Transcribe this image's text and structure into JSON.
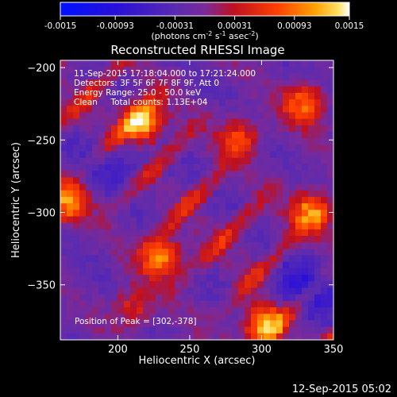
{
  "colorbar": {
    "tick_labels": [
      "-0.0015",
      "-0.00093",
      "-0.00031",
      "0.00031",
      "0.00093",
      "0.0015"
    ],
    "tick_values": [
      -0.0015,
      -0.00093,
      -0.00031,
      0.00031,
      0.00093,
      0.0015
    ],
    "range": [
      -0.0015,
      0.0015
    ],
    "unit_label_parts": [
      "(photons cm",
      "-2",
      " s",
      "-1",
      " asec",
      "-2",
      ")"
    ]
  },
  "chart_data": {
    "type": "heatmap",
    "title": "Reconstructed RHESSI Image",
    "xlabel": "Heliocentric X (arcsec)",
    "ylabel": "Heliocentric Y (arcsec)",
    "xlim": [
      160,
      350
    ],
    "ylim": [
      -388,
      -195
    ],
    "x_ticks": [
      200,
      250,
      300,
      350
    ],
    "y_ticks": [
      -200,
      -250,
      -300,
      -350
    ],
    "x_tick_labels": [
      "200",
      "250",
      "300",
      "350"
    ],
    "y_tick_labels": [
      "−200",
      "−250",
      "−300",
      "−350"
    ],
    "colorscale": "RHESSI blue-purple-red-yellow-white",
    "colors": [
      "#0010ff",
      "#3a10d0",
      "#5a2bb0",
      "#7a2ab0",
      "#b01818",
      "#ff3000",
      "#ff7a00",
      "#ffb000",
      "#ffe060",
      "#ffffff"
    ],
    "annotations": [
      "11-Sep-2015 17:18:04.000 to 17:21:24.000",
      "Detectors: 3F 5F 6F 7F 8F 9F, Att 0",
      "Energy Range: 25.0 - 50.0 keV",
      "Clean     Total counts: 1.13E+04"
    ],
    "peak_label": "Position of Peak = [302,-378]",
    "peak_position": [
      302,
      -378
    ],
    "sources": [
      {
        "x": 217,
        "y": -238,
        "intensity": 1.0
      },
      {
        "x": 230,
        "y": -330,
        "intensity": 0.8
      },
      {
        "x": 302,
        "y": -378,
        "intensity": 1.0
      },
      {
        "x": 335,
        "y": -300,
        "intensity": 0.85
      },
      {
        "x": 165,
        "y": -292,
        "intensity": 0.8
      },
      {
        "x": 330,
        "y": -225,
        "intensity": 0.7
      },
      {
        "x": 285,
        "y": -248,
        "intensity": 0.55
      },
      {
        "x": 210,
        "y": -365,
        "intensity": 0.45
      }
    ]
  },
  "footer": {
    "timestamp": "12-Sep-2015 05:02"
  }
}
